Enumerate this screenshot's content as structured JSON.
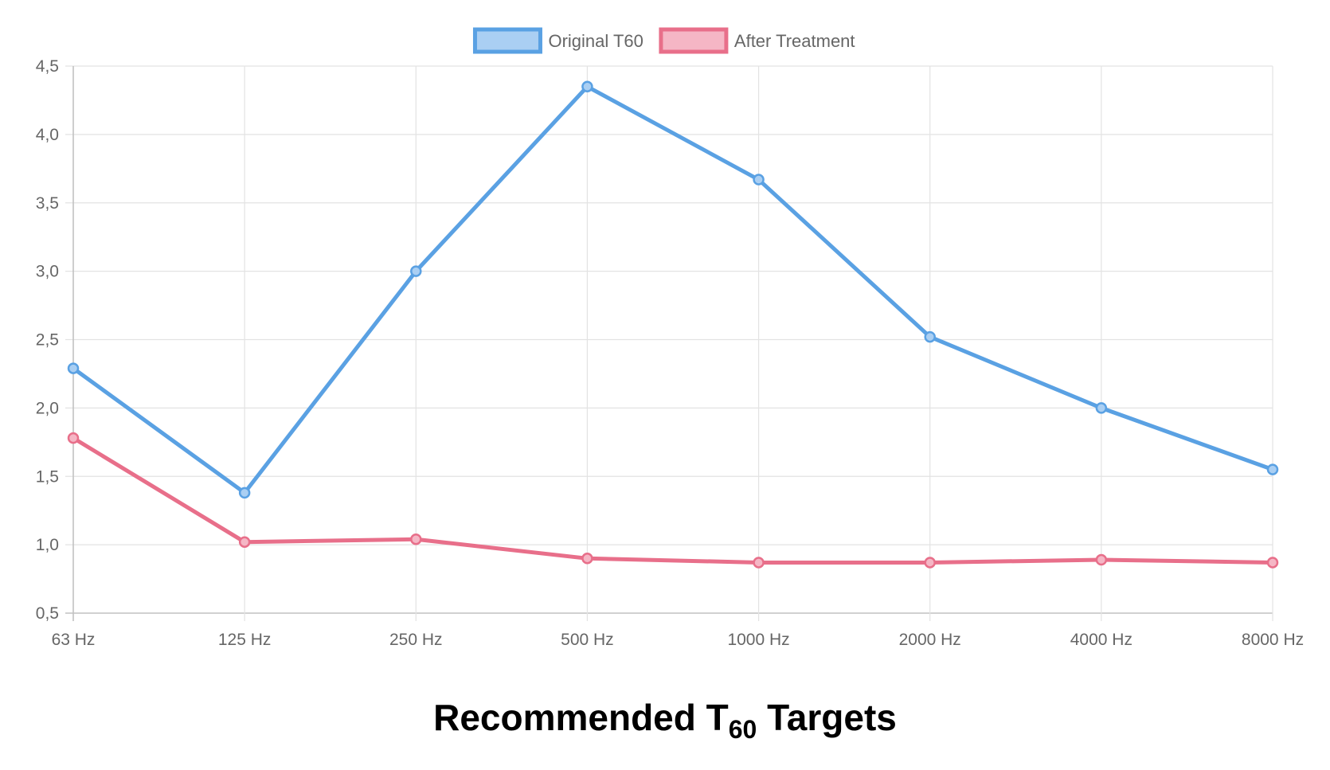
{
  "chart_data": {
    "type": "line",
    "title_main": "Recommended T",
    "title_sub": "60",
    "title_end": " Targets",
    "categories": [
      "63 Hz",
      "125 Hz",
      "250 Hz",
      "500 Hz",
      "1000 Hz",
      "2000 Hz",
      "4000 Hz",
      "8000 Hz"
    ],
    "ylim": [
      0.5,
      4.5
    ],
    "yticks": [
      0.5,
      1.0,
      1.5,
      2.0,
      2.5,
      3.0,
      3.5,
      4.0,
      4.5
    ],
    "ytick_labels": [
      "0,5",
      "1,0",
      "1,5",
      "2,0",
      "2,5",
      "3,0",
      "3,5",
      "4,0",
      "4,5"
    ],
    "grid": true,
    "legend_position": "top",
    "series": [
      {
        "name": "Original T60",
        "values": [
          2.29,
          1.38,
          3.0,
          4.35,
          3.67,
          2.52,
          2.0,
          1.55
        ],
        "color": "#5aa1e3",
        "fill": "#aacff3"
      },
      {
        "name": "After Treatment",
        "values": [
          1.78,
          1.02,
          1.04,
          0.9,
          0.87,
          0.87,
          0.89,
          0.87
        ],
        "color": "#e86f8a",
        "fill": "#f5b6c5"
      }
    ]
  }
}
